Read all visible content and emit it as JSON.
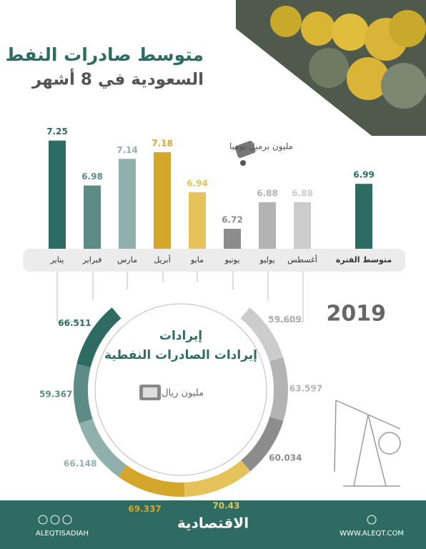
{
  "header": {
    "title": "متوسط صادرات النفط",
    "subtitle": "السعودية في 8 أشهر"
  },
  "year": "2019",
  "chart_data": [
    {
      "type": "bar",
      "unit": "مليون برميل يوميا",
      "categories": [
        "يناير",
        "فبراير",
        "مارس",
        "أبريل",
        "مايو",
        "يونيو",
        "يوليو",
        "أغسطس",
        "متوسط الفترة"
      ],
      "values": [
        7.25,
        6.98,
        7.14,
        7.18,
        6.94,
        6.72,
        6.88,
        6.88,
        6.99
      ],
      "colors": [
        "#2e6b63",
        "#5d8c86",
        "#8fb0ad",
        "#d4a62a",
        "#e6c35a",
        "#8c8c8c",
        "#b3b3b3",
        "#cccccc",
        "#2e6b63"
      ],
      "ylim": [
        6.6,
        7.3
      ]
    },
    {
      "type": "donut",
      "title": "إيرادات الصادرات النفطية",
      "unit": "مليون ريال",
      "values": [
        66.511,
        59.367,
        66.148,
        69.337,
        70.43,
        60.034,
        63.597,
        59.609
      ],
      "colors": [
        "#2e6b63",
        "#5d8c86",
        "#8fb0ad",
        "#d4a62a",
        "#e6c35a",
        "#8c8c8c",
        "#b3b3b3",
        "#cccccc"
      ]
    }
  ],
  "footer": {
    "logo": "الاقتصادية",
    "social": "ALEQTISADIAH",
    "website": "WWW.ALEQT.COM"
  }
}
